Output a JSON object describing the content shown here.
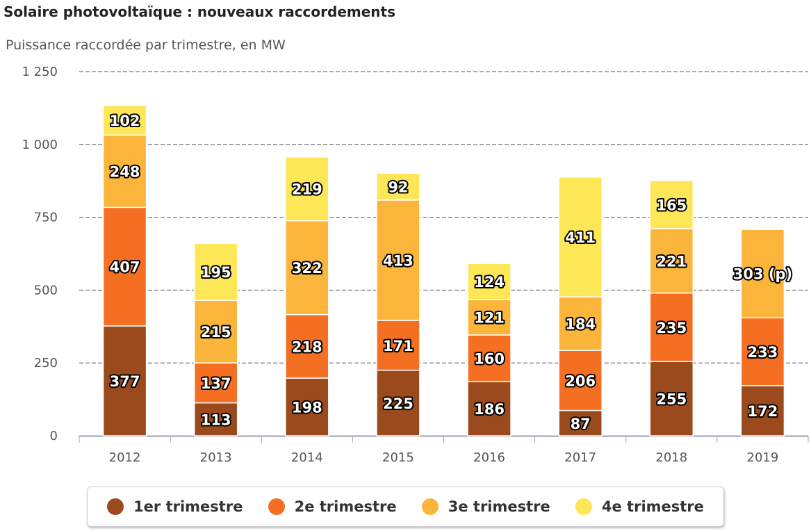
{
  "chart_data": {
    "type": "bar",
    "stacked": true,
    "title": "Solaire photovoltaïque : nouveaux raccordements",
    "subtitle": "Puissance raccordée par trimestre, en MW",
    "categories": [
      "2012",
      "2013",
      "2014",
      "2015",
      "2016",
      "2017",
      "2018",
      "2019"
    ],
    "series": [
      {
        "name": "1er trimestre",
        "color": "#9a4a1d",
        "values": [
          377,
          113,
          198,
          225,
          186,
          87,
          255,
          172
        ],
        "labels": [
          "377",
          "113",
          "198",
          "225",
          "186",
          "87",
          "255",
          "172"
        ]
      },
      {
        "name": "2e trimestre",
        "color": "#f46f22",
        "values": [
          407,
          137,
          218,
          171,
          160,
          206,
          235,
          233
        ],
        "labels": [
          "407",
          "137",
          "218",
          "171",
          "160",
          "206",
          "235",
          "233"
        ]
      },
      {
        "name": "3e trimestre",
        "color": "#fbb53a",
        "values": [
          248,
          215,
          322,
          413,
          121,
          184,
          221,
          303
        ],
        "labels": [
          "248",
          "215",
          "322",
          "413",
          "121",
          "184",
          "221",
          "303 (p)"
        ]
      },
      {
        "name": "4e trimestre",
        "color": "#fde756",
        "values": [
          102,
          195,
          219,
          92,
          124,
          411,
          165,
          null
        ],
        "labels": [
          "102",
          "195",
          "219",
          "92",
          "124",
          "411",
          "165",
          ""
        ]
      }
    ],
    "ylim": [
      0,
      1250
    ],
    "yticks": [
      0,
      250,
      500,
      750,
      1000,
      1250
    ],
    "ytick_labels": [
      "0",
      "250",
      "500",
      "750",
      "1 000",
      "1 250"
    ],
    "grid": true,
    "legend_position": "bottom"
  }
}
